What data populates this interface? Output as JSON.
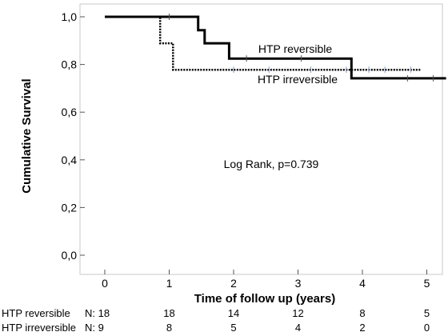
{
  "chart_data": {
    "type": "line",
    "subtype": "kaplan-meier",
    "xlabel": "Time of follow up (years)",
    "ylabel": "Cumulative Survival",
    "xlim": [
      0,
      5.3
    ],
    "ylim": [
      0,
      1.0
    ],
    "x_ticks": [
      "0",
      "1",
      "2",
      "3",
      "4",
      "5"
    ],
    "y_ticks": [
      "0,0",
      "0,2",
      "0,4",
      "0,6",
      "0,8",
      "1,0"
    ],
    "grid": false,
    "annotation": "Log Rank, p=0.739",
    "series": [
      {
        "name": "HTP reversible",
        "style": "solid",
        "color": "#000000",
        "x": [
          0,
          1.45,
          1.45,
          1.55,
          1.55,
          1.93,
          1.93,
          3.83,
          3.83,
          5.3
        ],
        "y": [
          1.0,
          1.0,
          0.944,
          0.944,
          0.889,
          0.889,
          0.825,
          0.825,
          0.742,
          0.742
        ],
        "censored_x": [
          1.0,
          2.2,
          3.05,
          4.7,
          5.1
        ]
      },
      {
        "name": "HTP irreversible",
        "style": "dotted",
        "color": "#000000",
        "x": [
          0,
          0.86,
          0.86,
          1.06,
          1.06,
          4.9
        ],
        "y": [
          1.0,
          1.0,
          0.889,
          0.889,
          0.778,
          0.778
        ],
        "censored_x": [
          2.0,
          2.55,
          3.2,
          3.75,
          4.1,
          4.35,
          4.75
        ]
      }
    ],
    "risk_table": [
      {
        "label": "HTP reversible",
        "n_label": "N: 18",
        "counts": [
          "18",
          "14",
          "12",
          "8",
          "5"
        ]
      },
      {
        "label": "HTP irreversible",
        "n_label": "N: 9",
        "counts": [
          "8",
          "5",
          "4",
          "2",
          "0"
        ]
      }
    ],
    "risk_table_x": [
      1,
      2,
      3,
      4,
      5
    ]
  }
}
